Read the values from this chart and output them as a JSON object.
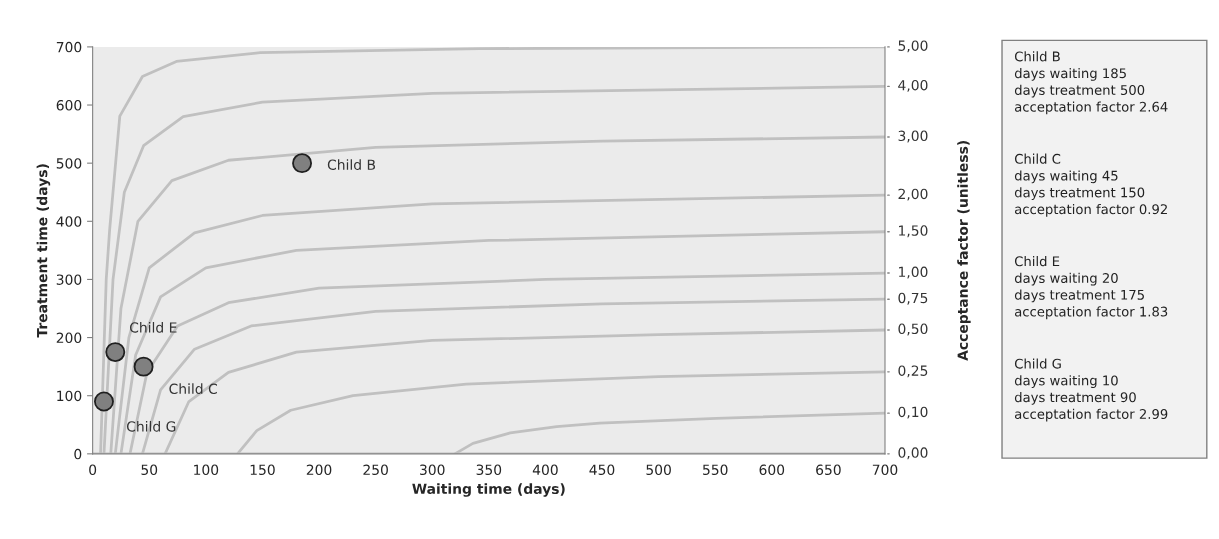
{
  "chart_data": {
    "type": "line",
    "xlabel": "Waiting time (days)",
    "ylabel": "Treatment time (days)",
    "y2label": "Acceptance factor (unitless)",
    "xlim": [
      0,
      700
    ],
    "xticks": [
      0,
      50,
      100,
      150,
      200,
      250,
      300,
      350,
      400,
      450,
      500,
      550,
      600,
      650,
      700
    ],
    "ylim": [
      0,
      700
    ],
    "yticks": [
      0,
      100,
      200,
      300,
      400,
      500,
      600,
      700
    ],
    "grid": false,
    "marker": "none",
    "line_style": "solid",
    "legend": false,
    "series": [
      {
        "name": "5,00",
        "color": "#c0c0c0",
        "x": [
          7,
          12,
          15,
          24,
          44,
          74,
          148,
          342,
          700
        ],
        "values": [
          0,
          300,
          385,
          581,
          649,
          675,
          690,
          697,
          700
        ]
      },
      {
        "name": "4,00",
        "color": "#c0c0c0",
        "x": [
          10,
          18,
          28,
          45,
          80,
          150,
          300,
          700
        ],
        "values": [
          0,
          300,
          450,
          530,
          580,
          605,
          620,
          632
        ]
      },
      {
        "name": "3,00",
        "color": "#c0c0c0",
        "x": [
          16,
          25,
          40,
          70,
          120,
          250,
          450,
          700
        ],
        "values": [
          0,
          250,
          400,
          470,
          505,
          527,
          538,
          545
        ]
      },
      {
        "name": "2,00",
        "color": "#c0c0c0",
        "x": [
          20,
          32,
          50,
          90,
          150,
          300,
          700
        ],
        "values": [
          0,
          200,
          320,
          380,
          410,
          430,
          445
        ]
      },
      {
        "name": "1,50",
        "color": "#c0c0c0",
        "x": [
          25,
          38,
          60,
          100,
          180,
          350,
          700
        ],
        "values": [
          0,
          170,
          270,
          320,
          350,
          367,
          382
        ]
      },
      {
        "name": "1,00",
        "color": "#c0c0c0",
        "x": [
          33,
          48,
          75,
          120,
          200,
          400,
          700
        ],
        "values": [
          0,
          140,
          220,
          260,
          285,
          300,
          311
        ]
      },
      {
        "name": "0,75",
        "color": "#c0c0c0",
        "x": [
          44,
          60,
          90,
          140,
          250,
          450,
          700
        ],
        "values": [
          0,
          110,
          180,
          220,
          245,
          258,
          266
        ]
      },
      {
        "name": "0,50",
        "color": "#c0c0c0",
        "x": [
          64,
          85,
          120,
          180,
          300,
          500,
          700
        ],
        "values": [
          0,
          90,
          140,
          175,
          195,
          205,
          213
        ]
      },
      {
        "name": "0,25",
        "color": "#c0c0c0",
        "x": [
          128,
          145,
          175,
          230,
          330,
          500,
          700
        ],
        "values": [
          0,
          40,
          75,
          100,
          120,
          133,
          141
        ]
      },
      {
        "name": "0,10",
        "color": "#c0c0c0",
        "x": [
          320,
          336,
          369,
          410,
          448,
          551,
          700
        ],
        "values": [
          0,
          18,
          36,
          47,
          53,
          61,
          70
        ]
      },
      {
        "name": "0,00",
        "color": "#c0c0c0",
        "x": [
          0,
          700
        ],
        "values": [
          0,
          0
        ]
      },
      {
        "type": "scatter",
        "marker": "circle",
        "color": "#808080",
        "x": [
          185,
          45,
          20,
          10
        ],
        "values": [
          500,
          150,
          175,
          90
        ]
      }
    ],
    "annotations": [
      {
        "text": "Child B",
        "x": 185,
        "y": 500
      },
      {
        "text": "Child C",
        "x": 45,
        "y": 150
      },
      {
        "text": "Child E",
        "x": 20,
        "y": 175
      },
      {
        "text": "Child G",
        "x": 10,
        "y": 90
      },
      "Child B\ndays waiting 185\ndays treatment 500\nacceptation factor 2.64",
      "Child C\ndays waiting 45\ndays treatment 150\nacceptation factor 0.92",
      "Child E\ndays waiting 20\ndays treatment 175\nacceptation factor 1.83",
      "Child G\ndays waiting 10\ndays treatment 90\nacceptation factor 2.99"
    ]
  }
}
